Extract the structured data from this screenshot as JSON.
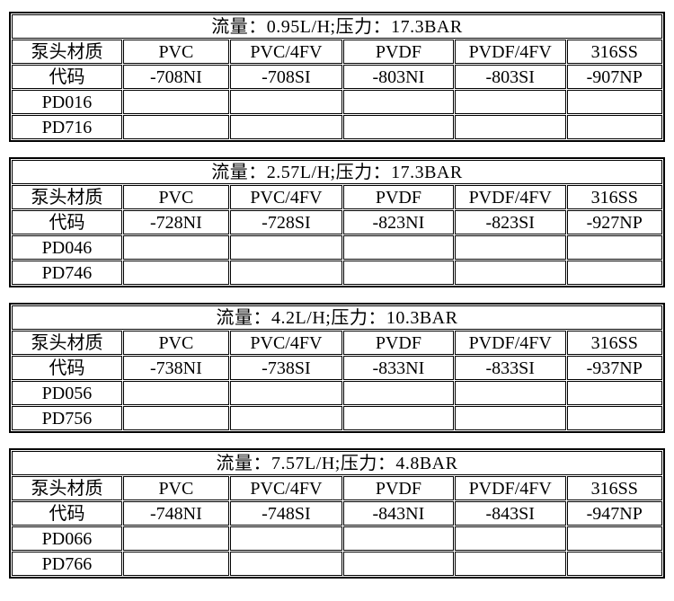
{
  "page": {
    "background_color": "#ffffff",
    "text_color": "#000000",
    "border_color": "#000000"
  },
  "tables": [
    {
      "title": "流量：0.95L/H;压力：17.3BAR",
      "headers": [
        "泵头材质",
        "PVC",
        "PVC/4FV",
        "PVDF",
        "PVDF/4FV",
        "316SS"
      ],
      "rows": [
        {
          "label": "代码",
          "values": [
            "-708NI",
            "-708SI",
            "-803NI",
            "-803SI",
            "-907NP"
          ]
        },
        {
          "label": "PD016",
          "values": [
            "",
            "",
            "",
            "",
            ""
          ]
        },
        {
          "label": "PD716",
          "values": [
            "",
            "",
            "",
            "",
            ""
          ]
        }
      ]
    },
    {
      "title": "流量：2.57L/H;压力：17.3BAR",
      "headers": [
        "泵头材质",
        "PVC",
        "PVC/4FV",
        "PVDF",
        "PVDF/4FV",
        "316SS"
      ],
      "rows": [
        {
          "label": "代码",
          "values": [
            "-728NI",
            "-728SI",
            "-823NI",
            "-823SI",
            "-927NP"
          ]
        },
        {
          "label": "PD046",
          "values": [
            "",
            "",
            "",
            "",
            ""
          ]
        },
        {
          "label": "PD746",
          "values": [
            "",
            "",
            "",
            "",
            ""
          ]
        }
      ]
    },
    {
      "title": "流量：4.2L/H;压力：10.3BAR",
      "headers": [
        "泵头材质",
        "PVC",
        "PVC/4FV",
        "PVDF",
        "PVDF/4FV",
        "316SS"
      ],
      "rows": [
        {
          "label": "代码",
          "values": [
            "-738NI",
            "-738SI",
            "-833NI",
            "-833SI",
            "-937NP"
          ]
        },
        {
          "label": "PD056",
          "values": [
            "",
            "",
            "",
            "",
            ""
          ]
        },
        {
          "label": "PD756",
          "values": [
            "",
            "",
            "",
            "",
            ""
          ]
        }
      ]
    },
    {
      "title": "流量：7.57L/H;压力：4.8BAR",
      "headers": [
        "泵头材质",
        "PVC",
        "PVC/4FV",
        "PVDF",
        "PVDF/4FV",
        "316SS"
      ],
      "rows": [
        {
          "label": "代码",
          "values": [
            "-748NI",
            "-748SI",
            "-843NI",
            "-843SI",
            "-947NP"
          ]
        },
        {
          "label": "PD066",
          "values": [
            "",
            "",
            "",
            "",
            ""
          ]
        },
        {
          "label": "PD766",
          "values": [
            "",
            "",
            "",
            "",
            ""
          ]
        }
      ]
    }
  ]
}
